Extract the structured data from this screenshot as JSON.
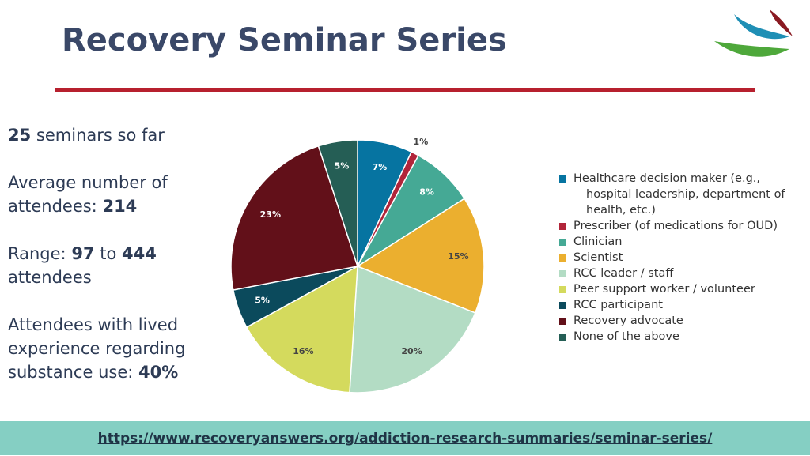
{
  "header": {
    "title": "Recovery Seminar Series"
  },
  "stats": [
    [
      "25",
      "seminars so far"
    ],
    [
      "Average number of attendees:",
      "214"
    ],
    [
      "Range:",
      "97",
      "to",
      "444",
      "attendees"
    ],
    [
      "Attendees with lived experience regarding substance use:",
      "40%"
    ]
  ],
  "chart_data": {
    "type": "pie",
    "categories": [
      "Healthcare decision maker (e.g., hospital leadership, department of health, etc.)",
      "Prescriber (of medications for OUD)",
      "Clinician",
      "Scientist",
      "RCC leader / staff",
      "Peer support worker / volunteer",
      "RCC participant",
      "Recovery advocate",
      "None of the above"
    ],
    "values": [
      7,
      1,
      8,
      15,
      20,
      16,
      5,
      23,
      5
    ],
    "value_labels": [
      "7%",
      "1%",
      "8%",
      "15%",
      "20%",
      "16%",
      "5%",
      "23%",
      "5%"
    ],
    "colors": [
      "#0674a1",
      "#b1253a",
      "#45a995",
      "#ebaf2f",
      "#b3dcc4",
      "#d4da5d",
      "#0b4a5c",
      "#621019",
      "#255e55"
    ]
  },
  "footer": {
    "link": "https://www.recoveryanswers.org/addiction-research-summaries/seminar-series/"
  }
}
